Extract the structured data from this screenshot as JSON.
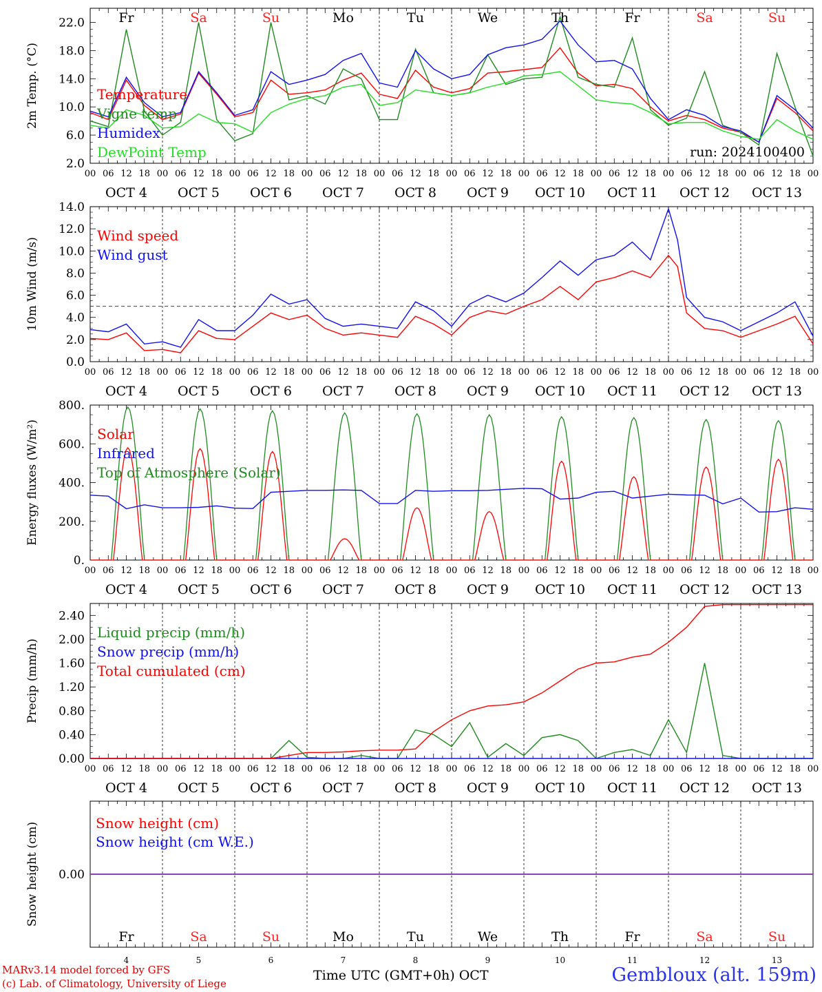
{
  "run_label": "run: 2024100400",
  "days": [
    {
      "dow": "Fr",
      "date": "OCT  4",
      "num": "4",
      "weekend": false
    },
    {
      "dow": "Sa",
      "date": "OCT  5",
      "num": "5",
      "weekend": true
    },
    {
      "dow": "Su",
      "date": "OCT  6",
      "num": "6",
      "weekend": true
    },
    {
      "dow": "Mo",
      "date": "OCT  7",
      "num": "7",
      "weekend": false
    },
    {
      "dow": "Tu",
      "date": "OCT  8",
      "num": "8",
      "weekend": false
    },
    {
      "dow": "We",
      "date": "OCT  9",
      "num": "9",
      "weekend": false
    },
    {
      "dow": "Th",
      "date": "OCT 10",
      "num": "10",
      "weekend": false
    },
    {
      "dow": "Fr",
      "date": "OCT 11",
      "num": "11",
      "weekend": false
    },
    {
      "dow": "Sa",
      "date": "OCT 12",
      "num": "12",
      "weekend": true
    },
    {
      "dow": "Su",
      "date": "OCT 13",
      "num": "13",
      "weekend": true
    }
  ],
  "hour_ticks": [
    "00",
    "06",
    "12",
    "18"
  ],
  "colors": {
    "red": "#ff0000",
    "green": "#1f8a1f",
    "blue": "#1010ee",
    "lightgreen": "#22dd22",
    "purple": "#7a2ab0",
    "weekend": "#ff2020"
  },
  "footer": {
    "model": "MARv3.14 model forced by GFS",
    "credit": "(c) Lab. of Climatology, University of Liege",
    "xlabel": "Time UTC (GMT+0h) OCT",
    "station": "Gembloux (alt. 159m)"
  },
  "chart_data": [
    {
      "type": "line",
      "ylabel": "2m Temp. (°C)",
      "ylim": [
        2,
        24
      ],
      "yticks": [
        2,
        6,
        10,
        14,
        18,
        22
      ],
      "ytick_labels": [
        "2.0",
        "6.0",
        "10.0",
        "14.0",
        "18.0",
        "22.0"
      ],
      "hours": [
        0,
        6,
        12,
        18,
        24,
        30,
        36,
        42,
        48,
        54,
        60,
        66,
        72,
        78,
        84,
        90,
        96,
        102,
        108,
        114,
        120,
        126,
        132,
        138,
        144,
        150,
        156,
        162,
        168,
        174,
        180,
        186,
        192,
        198,
        204,
        210,
        216,
        222,
        228,
        234,
        240
      ],
      "series": [
        {
          "name": "Temperature",
          "color": "red",
          "values": [
            9.2,
            8.2,
            13.8,
            10.2,
            8.2,
            9.0,
            14.8,
            11.8,
            8.6,
            9.2,
            13.8,
            11.8,
            12.0,
            12.4,
            13.8,
            14.8,
            11.8,
            11.2,
            15.2,
            12.8,
            12.0,
            12.6,
            14.8,
            15.0,
            15.3,
            15.6,
            18.4,
            14.8,
            13.0,
            13.2,
            12.6,
            10.0,
            8.0,
            8.8,
            8.2,
            7.0,
            6.4,
            5.0,
            11.2,
            9.2,
            6.6
          ]
        },
        {
          "name": "Vigne temp",
          "color": "green",
          "values": [
            8.0,
            7.2,
            21.0,
            9.4,
            6.0,
            7.8,
            22.0,
            8.2,
            5.2,
            6.2,
            22.0,
            11.0,
            11.6,
            10.4,
            15.4,
            14.0,
            8.2,
            8.2,
            18.2,
            12.0,
            11.6,
            12.0,
            17.4,
            13.2,
            14.0,
            14.2,
            22.8,
            14.2,
            13.2,
            12.8,
            19.8,
            9.6,
            7.4,
            8.4,
            15.0,
            7.4,
            6.4,
            4.6,
            17.6,
            10.0,
            3.0
          ]
        },
        {
          "name": "Humidex",
          "color": "blue",
          "values": [
            9.4,
            8.6,
            14.2,
            10.6,
            8.6,
            9.2,
            15.0,
            12.0,
            8.8,
            9.6,
            15.0,
            13.2,
            13.8,
            14.6,
            16.6,
            17.6,
            13.4,
            12.8,
            18.0,
            15.4,
            14.0,
            14.6,
            17.4,
            18.4,
            18.8,
            19.6,
            22.2,
            18.8,
            16.4,
            16.6,
            15.4,
            11.2,
            8.2,
            9.6,
            8.8,
            7.2,
            6.6,
            5.0,
            11.6,
            9.6,
            7.0
          ]
        },
        {
          "name": "DewPoint Temp",
          "color": "lightgreen",
          "values": [
            7.4,
            7.0,
            9.6,
            8.8,
            7.0,
            7.2,
            9.0,
            7.8,
            7.6,
            6.4,
            9.2,
            10.4,
            11.2,
            11.6,
            12.8,
            13.2,
            10.2,
            10.6,
            12.4,
            12.0,
            11.6,
            12.0,
            12.8,
            13.4,
            14.4,
            14.6,
            15.0,
            13.0,
            11.0,
            10.6,
            10.4,
            9.2,
            7.6,
            7.8,
            7.8,
            6.6,
            5.8,
            5.4,
            8.2,
            6.6,
            5.4
          ]
        }
      ]
    },
    {
      "type": "line",
      "ylabel": "10m Wind (m/s)",
      "ylim": [
        0,
        14
      ],
      "yticks": [
        0,
        2,
        4,
        6,
        8,
        10,
        12,
        14
      ],
      "ytick_labels": [
        "0.0",
        "2.0",
        "4.0",
        "6.0",
        "8.0",
        "10.0",
        "12.0",
        "14.0"
      ],
      "reference_line": 5,
      "hours": [
        0,
        6,
        12,
        18,
        24,
        30,
        36,
        42,
        48,
        54,
        60,
        66,
        72,
        78,
        84,
        90,
        96,
        102,
        108,
        114,
        120,
        126,
        132,
        138,
        144,
        150,
        156,
        162,
        168,
        174,
        180,
        186,
        192,
        195,
        198,
        204,
        210,
        216,
        222,
        228,
        234,
        240
      ],
      "series": [
        {
          "name": "Wind speed",
          "color": "red",
          "values": [
            2.1,
            2.0,
            2.6,
            1.0,
            1.1,
            0.8,
            2.8,
            2.1,
            2.0,
            3.2,
            4.4,
            3.8,
            4.2,
            3.0,
            2.4,
            2.6,
            2.4,
            2.2,
            4.1,
            3.4,
            2.4,
            4.0,
            4.6,
            4.3,
            5.0,
            5.6,
            6.8,
            5.6,
            7.2,
            7.6,
            8.2,
            7.6,
            9.6,
            8.6,
            4.4,
            3.0,
            2.8,
            2.2,
            2.8,
            3.4,
            4.1,
            1.6
          ]
        },
        {
          "name": "Wind gust",
          "color": "blue",
          "values": [
            2.9,
            2.7,
            3.4,
            1.6,
            1.8,
            1.3,
            3.8,
            2.8,
            2.8,
            4.2,
            6.1,
            5.2,
            5.6,
            3.9,
            3.2,
            3.4,
            3.2,
            3.0,
            5.4,
            4.6,
            3.2,
            5.2,
            6.0,
            5.4,
            6.2,
            7.6,
            9.1,
            7.8,
            9.2,
            9.6,
            10.8,
            9.2,
            13.8,
            11.0,
            5.8,
            4.0,
            3.6,
            2.8,
            3.6,
            4.4,
            5.4,
            2.3
          ]
        }
      ]
    },
    {
      "type": "line",
      "ylabel": "Energy fluxes (W/m²)",
      "ylim": [
        0,
        800
      ],
      "yticks": [
        0,
        200,
        400,
        600,
        800
      ],
      "ytick_labels": [
        "0.",
        "200.",
        "400.",
        "600.",
        "800."
      ],
      "diurnal_series": {
        "Top of Atmosphere (Solar)": {
          "color": "green",
          "peak_hour": 12.5,
          "half_width_hours": 5.5,
          "day_peaks": [
            790,
            780,
            770,
            760,
            755,
            750,
            740,
            735,
            725,
            720
          ]
        },
        "Solar": {
          "color": "red",
          "peak_hour": 12.5,
          "half_width_hours": 4.8,
          "day_peaks": [
            580,
            575,
            560,
            110,
            270,
            250,
            510,
            430,
            480,
            520
          ]
        }
      },
      "hours": [
        0,
        6,
        12,
        18,
        24,
        30,
        36,
        42,
        48,
        54,
        60,
        66,
        72,
        78,
        84,
        90,
        96,
        102,
        108,
        114,
        120,
        126,
        132,
        138,
        144,
        150,
        156,
        162,
        168,
        174,
        180,
        186,
        192,
        198,
        204,
        210,
        216,
        222,
        228,
        234,
        240
      ],
      "series": [
        {
          "name": "Infrared",
          "color": "blue",
          "values": [
            335,
            330,
            265,
            285,
            270,
            270,
            272,
            280,
            268,
            266,
            350,
            355,
            360,
            360,
            362,
            360,
            292,
            292,
            360,
            355,
            358,
            358,
            360,
            365,
            370,
            368,
            315,
            320,
            350,
            355,
            320,
            330,
            340,
            336,
            335,
            290,
            320,
            248,
            250,
            270,
            262
          ]
        }
      ]
    },
    {
      "type": "line",
      "ylabel": "Precip (mm/h)",
      "ylim": [
        0,
        2.6
      ],
      "yticks": [
        0,
        0.4,
        0.8,
        1.2,
        1.6,
        2.0,
        2.4
      ],
      "ytick_labels": [
        "0.00",
        "0.40",
        "0.80",
        "1.20",
        "1.60",
        "2.00",
        "2.40"
      ],
      "hours": [
        0,
        6,
        12,
        18,
        24,
        30,
        36,
        42,
        48,
        54,
        60,
        66,
        72,
        78,
        84,
        90,
        96,
        102,
        108,
        114,
        120,
        126,
        132,
        138,
        144,
        150,
        156,
        162,
        168,
        174,
        180,
        186,
        192,
        198,
        204,
        210,
        216,
        222,
        228,
        234,
        240
      ],
      "series": [
        {
          "name": "Liquid precip (mm/h)",
          "color": "green",
          "values": [
            0,
            0,
            0,
            0,
            0,
            0,
            0,
            0,
            0,
            0,
            0,
            0.3,
            0.02,
            0,
            0,
            0.05,
            0,
            0,
            0.48,
            0.4,
            0.2,
            0.6,
            0.02,
            0.25,
            0.05,
            0.35,
            0.4,
            0.3,
            0,
            0.1,
            0.15,
            0.05,
            0.65,
            0.1,
            1.6,
            0.05,
            0,
            0,
            0,
            0,
            0
          ]
        },
        {
          "name": "Snow precip (mm/h)",
          "color": "blue",
          "values": [
            0,
            0,
            0,
            0,
            0,
            0,
            0,
            0,
            0,
            0,
            0,
            0,
            0,
            0,
            0,
            0,
            0,
            0,
            0,
            0,
            0,
            0,
            0,
            0,
            0,
            0,
            0,
            0,
            0,
            0,
            0,
            0,
            0,
            0,
            0,
            0,
            0,
            0,
            0,
            0,
            0
          ]
        },
        {
          "name": "Total cumulated (cm)",
          "color": "red",
          "values": [
            0,
            0,
            0,
            0,
            0,
            0,
            0,
            0,
            0,
            0,
            0,
            0.05,
            0.1,
            0.1,
            0.11,
            0.13,
            0.14,
            0.14,
            0.16,
            0.45,
            0.65,
            0.8,
            0.88,
            0.9,
            0.95,
            1.1,
            1.3,
            1.5,
            1.6,
            1.62,
            1.7,
            1.75,
            1.95,
            2.2,
            2.55,
            2.58,
            2.58,
            2.58,
            2.58,
            2.58,
            2.58
          ]
        }
      ]
    },
    {
      "type": "line",
      "ylabel": "Snow height (cm)",
      "ylim": [
        -1,
        1
      ],
      "yticks": [
        0
      ],
      "ytick_labels": [
        "0.00"
      ],
      "hours": [
        0,
        240
      ],
      "series": [
        {
          "name": "Snow height (cm)",
          "color": "red",
          "values": [
            0,
            0
          ]
        },
        {
          "name": "Snow height (cm W.E.)",
          "color": "blue",
          "values": [
            0,
            0
          ]
        }
      ]
    }
  ]
}
